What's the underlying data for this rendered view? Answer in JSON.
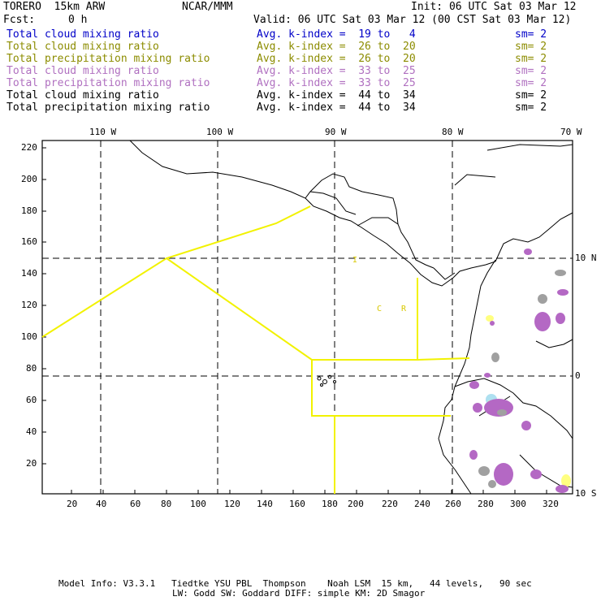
{
  "header": {
    "model": "TORERO  15km ARW",
    "center": "NCAR/MMM",
    "init": "Init: 06 UTC Sat 03 Mar 12",
    "fcst_label": "Fcst:",
    "fcst_value": "0 h",
    "valid": "Valid: 06 UTC Sat 03 Mar 12 (00 CST Sat 03 Mar 12)"
  },
  "legend": [
    {
      "field": "Total cloud mixing ratio",
      "kindex": "Avg. k-index =  19 to   4",
      "sm": "sm= 2",
      "color": "#0000c8"
    },
    {
      "field": "Total cloud mixing ratio",
      "kindex": "Avg. k-index =  26 to  20",
      "sm": "sm= 2",
      "color": "#8c8c00"
    },
    {
      "field": "Total precipitation mixing ratio",
      "kindex": "Avg. k-index =  26 to  20",
      "sm": "sm= 2",
      "color": "#8c8c00"
    },
    {
      "field": "Total cloud mixing ratio",
      "kindex": "Avg. k-index =  33 to  25",
      "sm": "sm= 2",
      "color": "#b070c0"
    },
    {
      "field": "Total precipitation mixing ratio",
      "kindex": "Avg. k-index =  33 to  25",
      "sm": "sm= 2",
      "color": "#b070c0"
    },
    {
      "field": "Total cloud mixing ratio",
      "kindex": "Avg. k-index =  44 to  34",
      "sm": "sm= 2",
      "color": "#000000"
    },
    {
      "field": "Total precipitation mixing ratio",
      "kindex": "Avg. k-index =  44 to  34",
      "sm": "sm= 2",
      "color": "#000000"
    }
  ],
  "map": {
    "lon_labels": [
      "110 W",
      "100 W",
      "90 W",
      "80 W",
      "70 W"
    ],
    "lat_labels": [
      "10 N",
      "0",
      "10 S"
    ],
    "x_ticks": [
      "20",
      "40",
      "60",
      "80",
      "100",
      "120",
      "140",
      "160",
      "180",
      "200",
      "220",
      "240",
      "260",
      "280",
      "300",
      "320"
    ],
    "y_ticks": [
      "220",
      "200",
      "180",
      "160",
      "140",
      "120",
      "100",
      "80",
      "60",
      "40",
      "20"
    ],
    "region_labels": [
      "C",
      "R",
      "I"
    ],
    "colors": {
      "border": "#000000",
      "grid": "#000000",
      "yellow_lines": "#ffff00",
      "purple": "#b468c4",
      "gray": "#a0a0a0"
    }
  },
  "footer": {
    "line1": "Model Info: V3.3.1   Tiedtke YSU PBL  Thompson    Noah LSM  15 km,   44 levels,   90 sec",
    "line2": "LW: Godd SW: Goddard DIFF: simple KM: 2D Smagor"
  }
}
